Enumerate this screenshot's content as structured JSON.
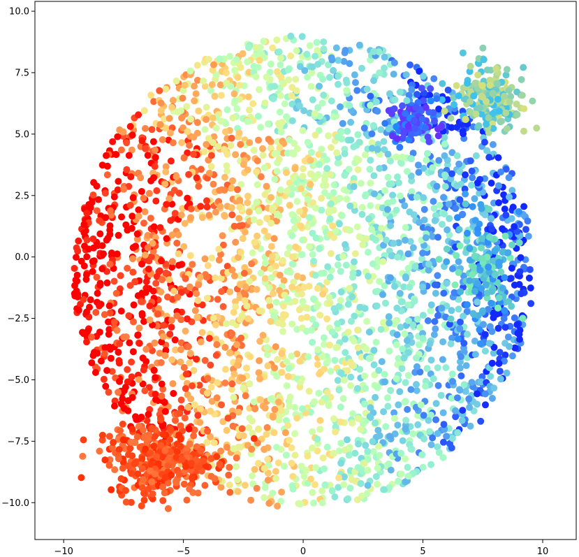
{
  "chart_data": {
    "type": "scatter",
    "title": "",
    "xlabel": "",
    "ylabel": "",
    "xlim": [
      -11.2,
      11.4
    ],
    "ylim": [
      -11.5,
      10.4
    ],
    "grid": false,
    "legend": "none",
    "colormap": "rainbow",
    "x_ticks": [
      {
        "value": -10,
        "label": "−10"
      },
      {
        "value": -5,
        "label": "−5"
      },
      {
        "value": 0,
        "label": "0"
      },
      {
        "value": 5,
        "label": "5"
      },
      {
        "value": 10,
        "label": "10"
      }
    ],
    "y_ticks": [
      {
        "value": 10,
        "label": "10.0"
      },
      {
        "value": 7.5,
        "label": "7.5"
      },
      {
        "value": 5,
        "label": "5.0"
      },
      {
        "value": 2.5,
        "label": "2.5"
      },
      {
        "value": 0,
        "label": "0.0"
      },
      {
        "value": -2.5,
        "label": "−2.5"
      },
      {
        "value": -5,
        "label": "−5.0"
      },
      {
        "value": -7.5,
        "label": "−7.5"
      },
      {
        "value": -10,
        "label": "−10.0"
      }
    ],
    "series": [
      {
        "shape": "disk",
        "center": [
          0,
          -0.6
        ],
        "radius": 9.6,
        "points": 3200,
        "color_gradient": {
          "from": "#ff2000",
          "to": "#3050ff",
          "x_range": [
            -8,
            10
          ]
        }
      },
      {
        "shape": "blob",
        "center": [
          -6.0,
          -8.3
        ],
        "spread": [
          1.9,
          1.3
        ],
        "points": 320,
        "color_range": [
          "#ff2a00",
          "#ff7a40"
        ]
      },
      {
        "shape": "blob",
        "center": [
          7.8,
          6.5
        ],
        "spread": [
          1.3,
          1.1
        ],
        "points": 220,
        "color_range": [
          "#d6e17a",
          "#36c0f0"
        ]
      },
      {
        "shape": "blob",
        "center": [
          4.5,
          5.5
        ],
        "spread": [
          1.0,
          0.9
        ],
        "points": 90,
        "color_range": [
          "#1e8cff",
          "#6a2cff"
        ]
      },
      {
        "shape": "blob",
        "center": [
          7.5,
          -0.5
        ],
        "spread": [
          1.1,
          2.0
        ],
        "points": 140,
        "color_range": [
          "#2b8cff",
          "#7ef0b0"
        ]
      }
    ]
  }
}
